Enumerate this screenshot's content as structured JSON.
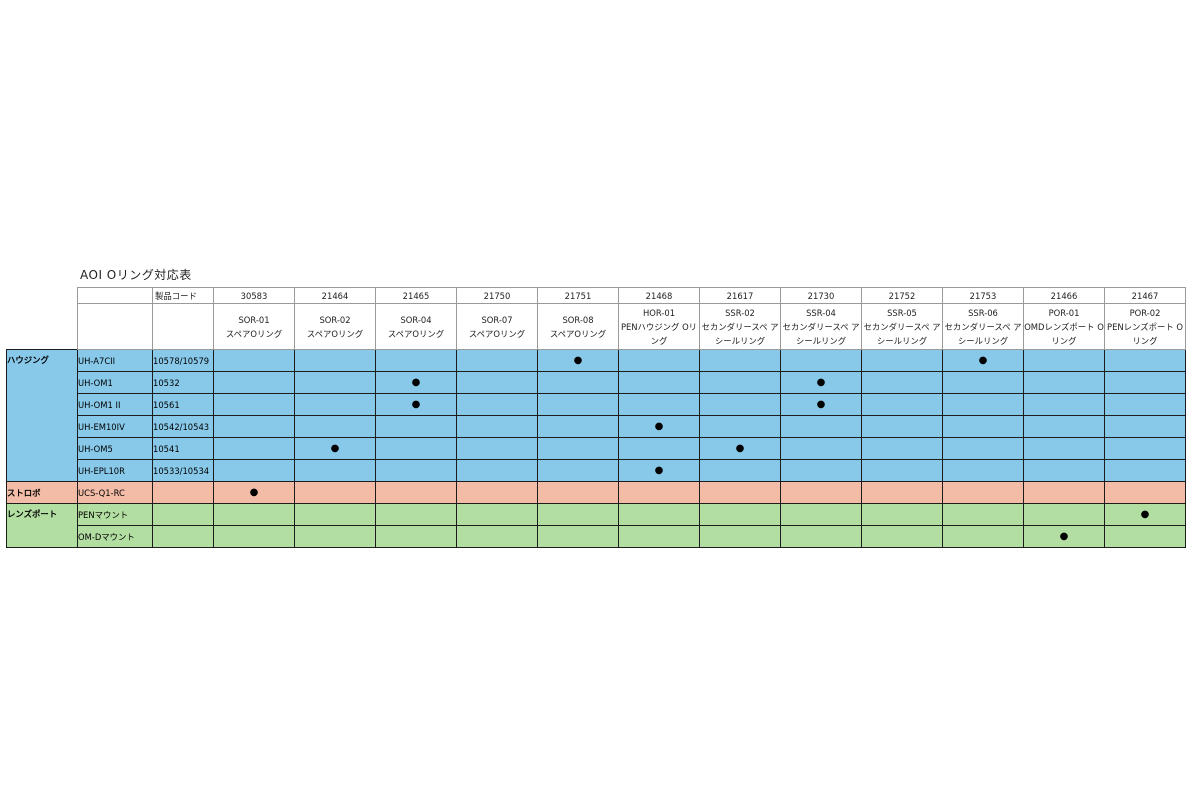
{
  "title": "AOI Oリング対応表",
  "code_header": "製品コード",
  "dot_symbol": "●",
  "products": [
    {
      "code": "30583",
      "model": "SOR-01",
      "name": "スペアOリング"
    },
    {
      "code": "21464",
      "model": "SOR-02",
      "name": "スペアOリング"
    },
    {
      "code": "21465",
      "model": "SOR-04",
      "name": "スペアOリング"
    },
    {
      "code": "21750",
      "model": "SOR-07",
      "name": "スペアOリング"
    },
    {
      "code": "21751",
      "model": "SOR-08",
      "name": "スペアOリング"
    },
    {
      "code": "21468",
      "model": "HOR-01",
      "name": "PENハウジング Oリング"
    },
    {
      "code": "21617",
      "model": "SSR-02",
      "name": "セカンダリースペ アシールリング"
    },
    {
      "code": "21730",
      "model": "SSR-04",
      "name": "セカンダリースペ アシールリング"
    },
    {
      "code": "21752",
      "model": "SSR-05",
      "name": "セカンダリースペ アシールリング"
    },
    {
      "code": "21753",
      "model": "SSR-06",
      "name": "セカンダリースペ アシールリング"
    },
    {
      "code": "21466",
      "model": "POR-01",
      "name": "OMDレンズポート Oリング"
    },
    {
      "code": "21467",
      "model": "POR-02",
      "name": "PENレンズポート Oリング"
    }
  ],
  "groups": [
    {
      "label": "ハウジング",
      "color": "#88c9ea",
      "rows": [
        {
          "model": "UH-A7CII",
          "code": "10578/10579",
          "marks": [
            4,
            9
          ]
        },
        {
          "model": "UH-OM1",
          "code": "10532",
          "marks": [
            2,
            7
          ]
        },
        {
          "model": "UH-OM1 II",
          "code": "10561",
          "marks": [
            2,
            7
          ]
        },
        {
          "model": "UH-EM10IV",
          "code": "10542/10543",
          "marks": [
            5
          ]
        },
        {
          "model": "UH-OM5",
          "code": "10541",
          "marks": [
            1,
            6
          ]
        },
        {
          "model": "UH-EPL10R",
          "code": "10533/10534",
          "marks": [
            5
          ]
        }
      ]
    },
    {
      "label": "ストロボ",
      "color": "#f3bca7",
      "rows": [
        {
          "model": "UCS-Q1-RC",
          "code": "",
          "marks": [
            0
          ]
        }
      ]
    },
    {
      "label": "レンズポート",
      "color": "#b3dea2",
      "rows": [
        {
          "model": "PENマウント",
          "code": "",
          "marks": [
            11
          ]
        },
        {
          "model": "OM-Dマウント",
          "code": "",
          "marks": [
            10
          ]
        }
      ]
    }
  ]
}
